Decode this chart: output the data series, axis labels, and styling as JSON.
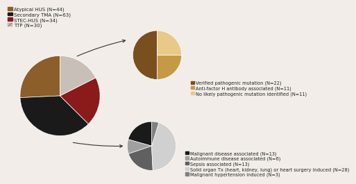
{
  "bg_color": "#f2ede8",
  "main_pie": {
    "values": [
      44,
      63,
      34,
      30
    ],
    "colors": [
      "#8B5E2A",
      "#1a1a1a",
      "#8B1A1A",
      "#c8c0b8"
    ],
    "labels": [
      "Atypical HUS (N=44)",
      "Secondary TMA (N=63)",
      "STEC-HUS (N=34)",
      "TTP (N=30)"
    ],
    "startangle": 90
  },
  "top_pie": {
    "values": [
      22,
      11,
      11
    ],
    "colors": [
      "#7a4f1e",
      "#c49a45",
      "#e8c98a"
    ],
    "labels": [
      "Verified pathogenic mutation (N=22)",
      "Anti-factor H antibody associated (N=11)",
      "No likely pathogenic mutation identified (N=11)"
    ],
    "startangle": 90
  },
  "bottom_pie": {
    "values": [
      13,
      6,
      13,
      28,
      3
    ],
    "colors": [
      "#1a1a1a",
      "#a0a0a0",
      "#606060",
      "#d0d0d0",
      "#808080"
    ],
    "labels": [
      "Malignant disease associated (N=13)",
      "Autoimmune disease associated (N=6)",
      "Sepsis associated (N=13)",
      "Solid organ Tx (heart, kidney, lung) or heart surgery induced (N=28)",
      "Malignant hypertension induced (N=3)"
    ],
    "startangle": 90
  },
  "legend_fontsize": 5.0,
  "sub_legend_fontsize": 4.8
}
